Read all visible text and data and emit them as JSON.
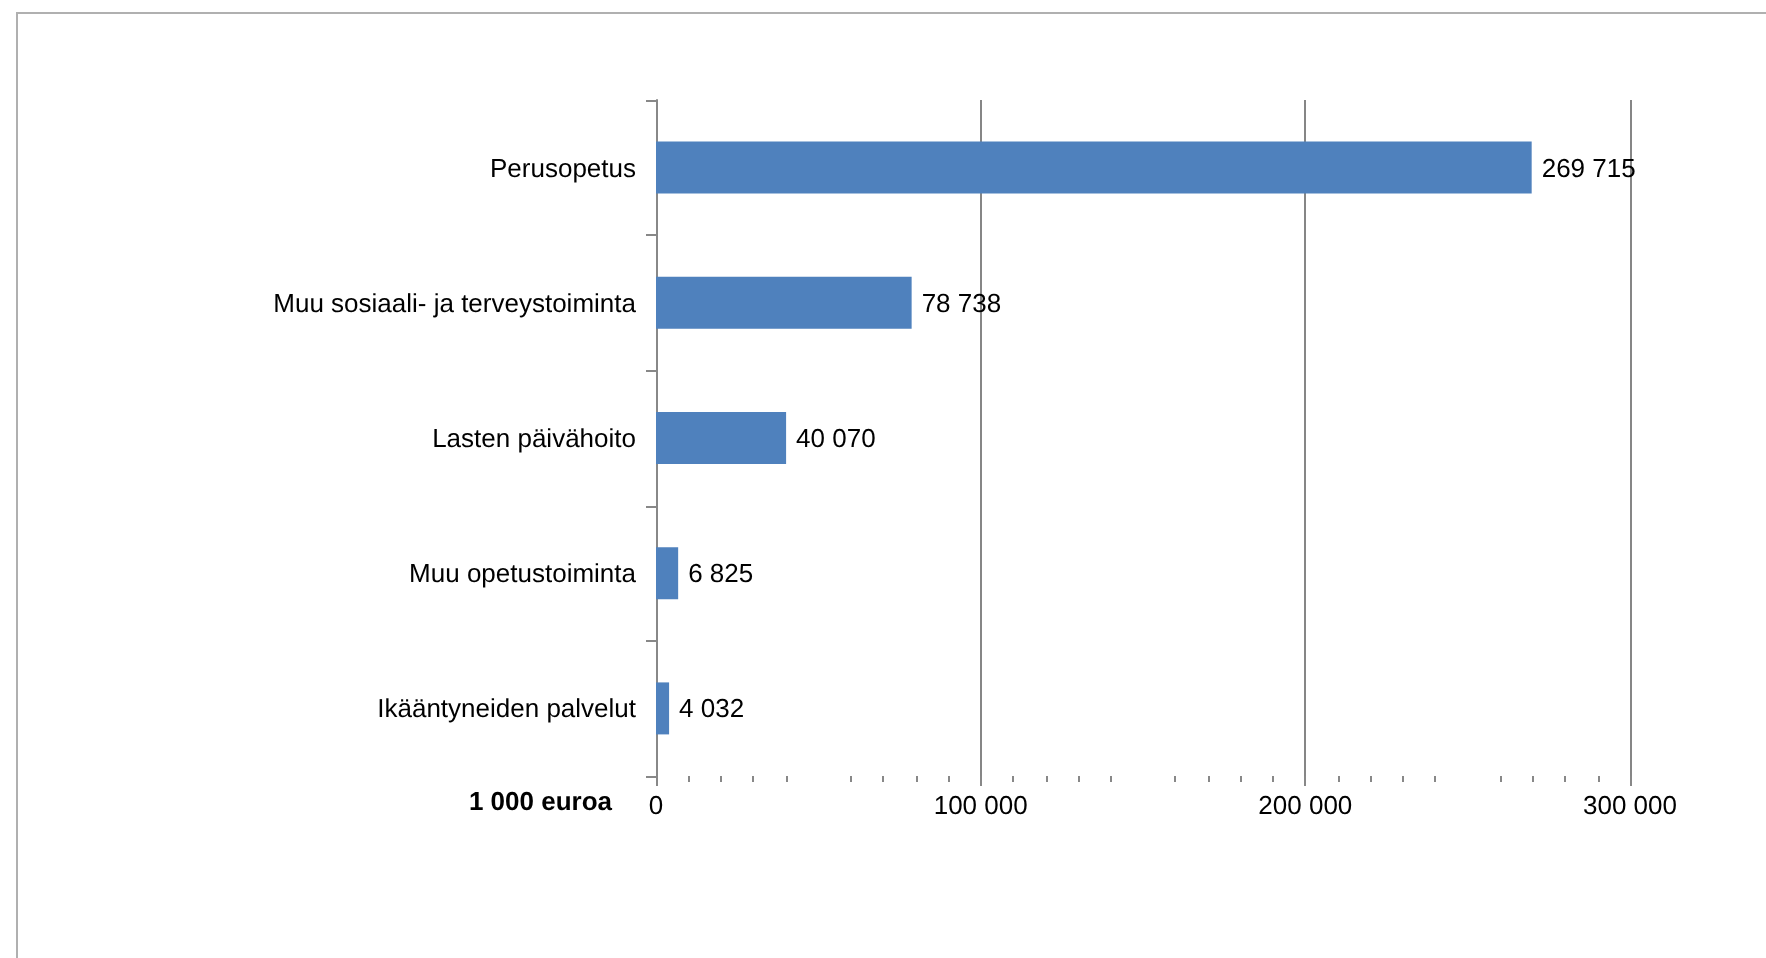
{
  "chart_data": {
    "type": "bar",
    "orientation": "horizontal",
    "xlabel": "1 000 euroa",
    "categories": [
      "Perusopetus",
      "Muu sosiaali- ja terveystoiminta",
      "Lasten päivähoito",
      "Muu opetustoiminta",
      "Ikääntyneiden palvelut"
    ],
    "values": [
      269715,
      78738,
      40070,
      6825,
      4032
    ],
    "value_labels": [
      "269 715",
      "78 738",
      "40 070",
      "6 825",
      "4 032"
    ],
    "color": "#4f81bd",
    "xlim": [
      0,
      300000
    ],
    "xticks": [
      0,
      {
        "value": 100000,
        "label": "100 000"
      },
      {
        "value": 200000,
        "label": "200 000"
      },
      {
        "value": 300000,
        "label": "300 000"
      }
    ],
    "grid": "x"
  }
}
